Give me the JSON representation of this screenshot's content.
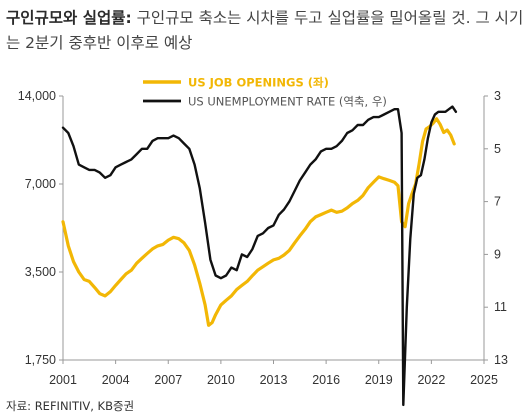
{
  "title": {
    "lead": "구인규모와 실업률:",
    "rest": " 구인규모 축소는 시차를 두고 실업률을 밀어올릴 것. 그 시기는 2분기 중후반 이후로 예상"
  },
  "source": "자료: REFINITIV, KB증권",
  "colors": {
    "openings": "#f2b705",
    "unemployment": "#111111",
    "axis": "#999999"
  },
  "chart_data": {
    "type": "line",
    "grid": false,
    "legend_position": "top-center",
    "x_ticks": [
      "2001",
      "2004",
      "2007",
      "2010",
      "2013",
      "2016",
      "2019",
      "2022",
      "2025"
    ],
    "xlim": [
      2001,
      2025
    ],
    "y_left": {
      "ticks": [
        "14,000",
        "7,000",
        "3,500",
        "1,750"
      ],
      "scale": "log",
      "ylim": [
        1750,
        14000
      ]
    },
    "y_right": {
      "ticks": [
        "3",
        "5",
        "7",
        "9",
        "11",
        "13"
      ],
      "inverted": true,
      "ylim": [
        3,
        13
      ]
    },
    "series": [
      {
        "name": "US JOB OPENINGS (좌)",
        "axis": "left",
        "color": "#f2b705",
        "x": [
          2001.0,
          2001.3,
          2001.6,
          2001.9,
          2002.2,
          2002.5,
          2002.8,
          2003.1,
          2003.4,
          2003.7,
          2004.0,
          2004.3,
          2004.6,
          2004.9,
          2005.2,
          2005.5,
          2005.8,
          2006.1,
          2006.4,
          2006.7,
          2007.0,
          2007.3,
          2007.6,
          2007.9,
          2008.2,
          2008.5,
          2008.8,
          2009.1,
          2009.3,
          2009.5,
          2009.7,
          2010.0,
          2010.3,
          2010.6,
          2010.9,
          2011.2,
          2011.5,
          2011.8,
          2012.1,
          2012.4,
          2012.7,
          2013.0,
          2013.3,
          2013.6,
          2013.9,
          2014.2,
          2014.5,
          2014.8,
          2015.1,
          2015.4,
          2015.7,
          2016.0,
          2016.3,
          2016.6,
          2016.9,
          2017.2,
          2017.5,
          2017.8,
          2018.1,
          2018.4,
          2018.7,
          2019.0,
          2019.3,
          2019.6,
          2019.9,
          2020.1,
          2020.3,
          2020.5,
          2020.7,
          2020.9,
          2021.1,
          2021.3,
          2021.5,
          2021.7,
          2021.9,
          2022.1,
          2022.3,
          2022.5,
          2022.7,
          2022.9,
          2023.1,
          2023.3
        ],
        "values": [
          5200,
          4300,
          3800,
          3500,
          3300,
          3250,
          3100,
          2950,
          2900,
          3000,
          3150,
          3300,
          3450,
          3550,
          3750,
          3900,
          4050,
          4200,
          4300,
          4350,
          4500,
          4600,
          4550,
          4400,
          4150,
          3700,
          3200,
          2700,
          2300,
          2350,
          2500,
          2700,
          2800,
          2900,
          3050,
          3150,
          3250,
          3400,
          3550,
          3650,
          3750,
          3850,
          3900,
          4000,
          4150,
          4400,
          4650,
          4900,
          5200,
          5400,
          5500,
          5600,
          5700,
          5600,
          5650,
          5800,
          6000,
          6150,
          6400,
          6800,
          7100,
          7400,
          7300,
          7200,
          7100,
          6900,
          5200,
          5000,
          6000,
          6500,
          7000,
          8200,
          9800,
          10800,
          11000,
          11300,
          11700,
          11200,
          10500,
          10700,
          10300,
          9600
        ]
      },
      {
        "name": "US UNEMPLOYMENT RATE (역축, 우)",
        "axis": "right",
        "color": "#111111",
        "x": [
          2001.0,
          2001.3,
          2001.6,
          2001.9,
          2002.2,
          2002.5,
          2002.8,
          2003.1,
          2003.4,
          2003.7,
          2004.0,
          2004.3,
          2004.6,
          2004.9,
          2005.2,
          2005.5,
          2005.8,
          2006.1,
          2006.4,
          2006.7,
          2007.0,
          2007.3,
          2007.6,
          2007.9,
          2008.2,
          2008.5,
          2008.8,
          2009.1,
          2009.4,
          2009.7,
          2010.0,
          2010.3,
          2010.6,
          2010.9,
          2011.2,
          2011.5,
          2011.8,
          2012.1,
          2012.4,
          2012.7,
          2013.0,
          2013.3,
          2013.6,
          2013.9,
          2014.2,
          2014.5,
          2014.8,
          2015.1,
          2015.4,
          2015.7,
          2016.0,
          2016.3,
          2016.6,
          2016.9,
          2017.2,
          2017.5,
          2017.8,
          2018.1,
          2018.4,
          2018.7,
          2019.0,
          2019.3,
          2019.6,
          2019.9,
          2020.1,
          2020.3,
          2020.4,
          2020.6,
          2020.8,
          2021.0,
          2021.2,
          2021.4,
          2021.6,
          2021.8,
          2022.0,
          2022.2,
          2022.4,
          2022.6,
          2022.8,
          2023.0,
          2023.2,
          2023.4
        ],
        "values": [
          4.2,
          4.4,
          4.9,
          5.6,
          5.7,
          5.8,
          5.8,
          5.9,
          6.1,
          6.0,
          5.7,
          5.6,
          5.5,
          5.4,
          5.2,
          5.0,
          5.0,
          4.7,
          4.6,
          4.6,
          4.6,
          4.5,
          4.6,
          4.8,
          5.0,
          5.6,
          6.5,
          7.8,
          9.2,
          9.8,
          9.9,
          9.8,
          9.5,
          9.6,
          9.0,
          9.1,
          8.8,
          8.3,
          8.2,
          8.0,
          7.9,
          7.5,
          7.3,
          7.0,
          6.6,
          6.2,
          5.9,
          5.6,
          5.4,
          5.1,
          5.0,
          5.0,
          4.9,
          4.7,
          4.4,
          4.3,
          4.1,
          4.1,
          3.9,
          3.8,
          3.8,
          3.7,
          3.6,
          3.5,
          3.5,
          4.4,
          14.7,
          11.0,
          8.4,
          6.7,
          6.1,
          6.0,
          5.4,
          4.6,
          4.0,
          3.7,
          3.6,
          3.6,
          3.6,
          3.5,
          3.4,
          3.6
        ]
      }
    ]
  }
}
